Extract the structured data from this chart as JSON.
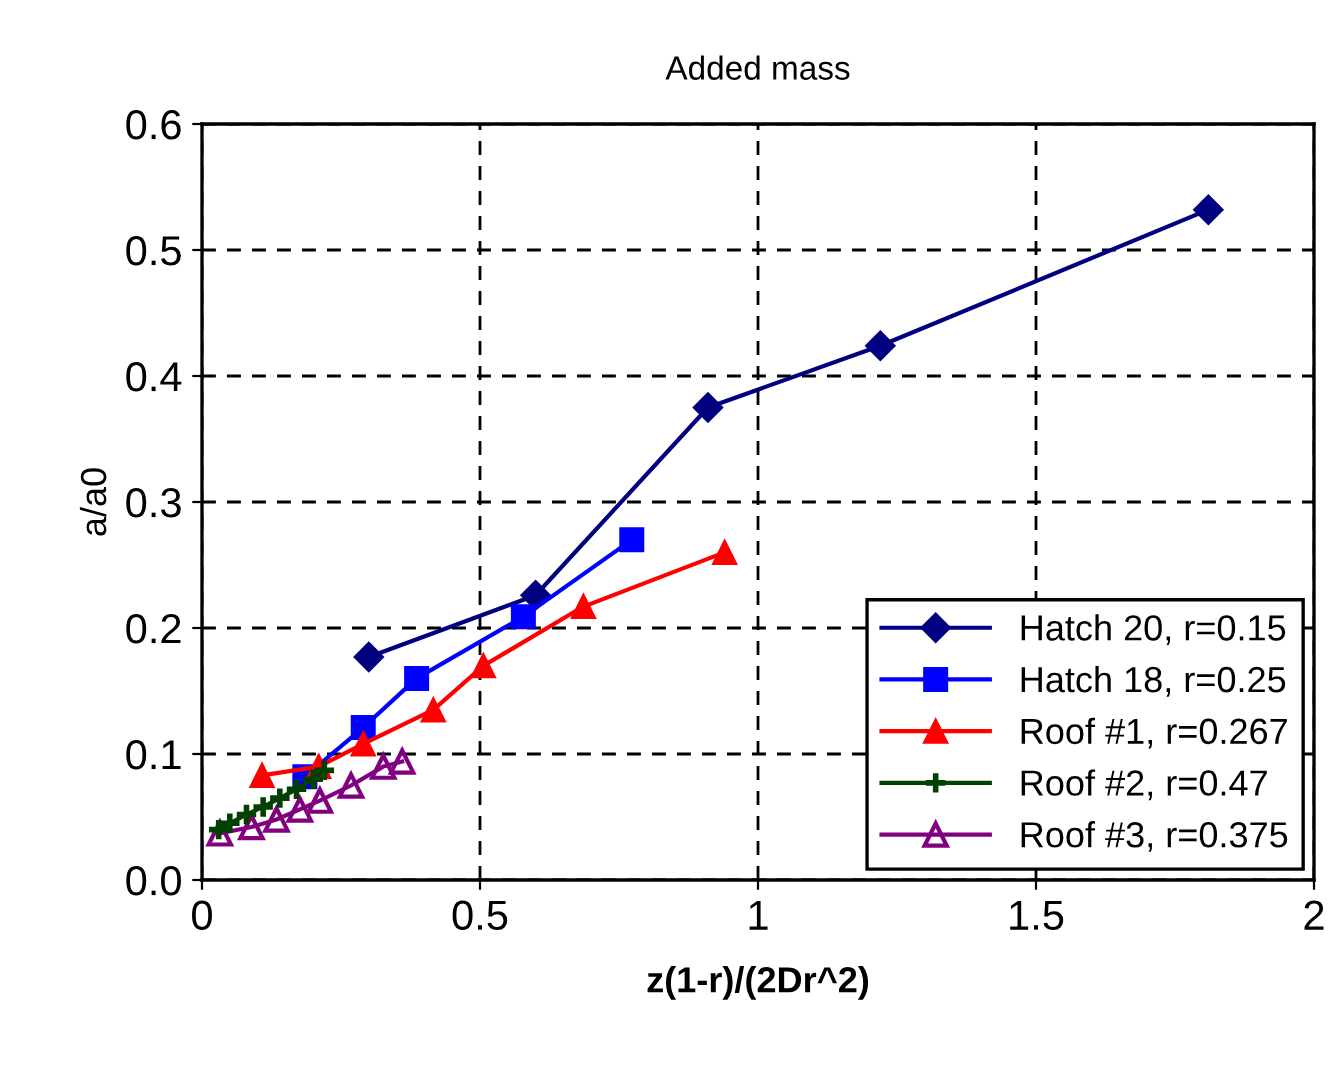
{
  "chart_data": {
    "type": "line",
    "title": "Added mass",
    "xlabel": "z(1-r)/(2Dr^2)",
    "ylabel": "a/a0",
    "xlim": [
      0,
      2
    ],
    "xticks": [
      0,
      0.5,
      1,
      1.5,
      2
    ],
    "ylim": [
      0,
      0.6
    ],
    "yticks": [
      {
        "value": 0,
        "label": "0.0"
      },
      {
        "value": 0.1,
        "label": "0.1"
      },
      {
        "value": 0.2,
        "label": "0.2"
      },
      {
        "value": 0.3,
        "label": "0.3"
      },
      {
        "value": 0.4,
        "label": "0.4"
      },
      {
        "value": 0.5,
        "label": "0.5"
      },
      {
        "value": 0.6,
        "label": "0.6"
      }
    ],
    "grid": true,
    "legend": "bottom right",
    "line_style": "solid",
    "series": [
      {
        "name": "Hatch 20, r=0.15",
        "color": "#000080",
        "marker": "diamond",
        "x": [
          0.3,
          0.6,
          0.91,
          1.22,
          1.81
        ],
        "values": [
          0.177,
          0.226,
          0.375,
          0.424,
          0.532
        ]
      },
      {
        "name": "Hatch 18, r=0.25",
        "color": "#0000ff",
        "marker": "square",
        "x": [
          0.185,
          0.29,
          0.386,
          0.578,
          0.773
        ],
        "values": [
          0.082,
          0.121,
          0.16,
          0.209,
          0.27
        ]
      },
      {
        "name": "Roof #1, r=0.267",
        "color": "#ff0000",
        "marker": "triangle",
        "x": [
          0.108,
          0.21,
          0.29,
          0.416,
          0.506,
          0.686,
          0.94
        ],
        "values": [
          0.083,
          0.09,
          0.108,
          0.135,
          0.17,
          0.217,
          0.26
        ]
      },
      {
        "name": "Roof #2, r=0.47",
        "color": "#004000",
        "marker": "cross",
        "x": [
          0.03,
          0.05,
          0.08,
          0.11,
          0.14,
          0.17,
          0.2,
          0.22
        ],
        "values": [
          0.04,
          0.045,
          0.052,
          0.058,
          0.065,
          0.072,
          0.08,
          0.087
        ]
      },
      {
        "name": "Roof #3, r=0.375",
        "color": "#800080",
        "marker": "triangle",
        "x": [
          0.032,
          0.089,
          0.134,
          0.176,
          0.212,
          0.268,
          0.326,
          0.36
        ],
        "values": [
          0.037,
          0.042,
          0.048,
          0.056,
          0.063,
          0.075,
          0.09,
          0.094
        ]
      }
    ]
  }
}
